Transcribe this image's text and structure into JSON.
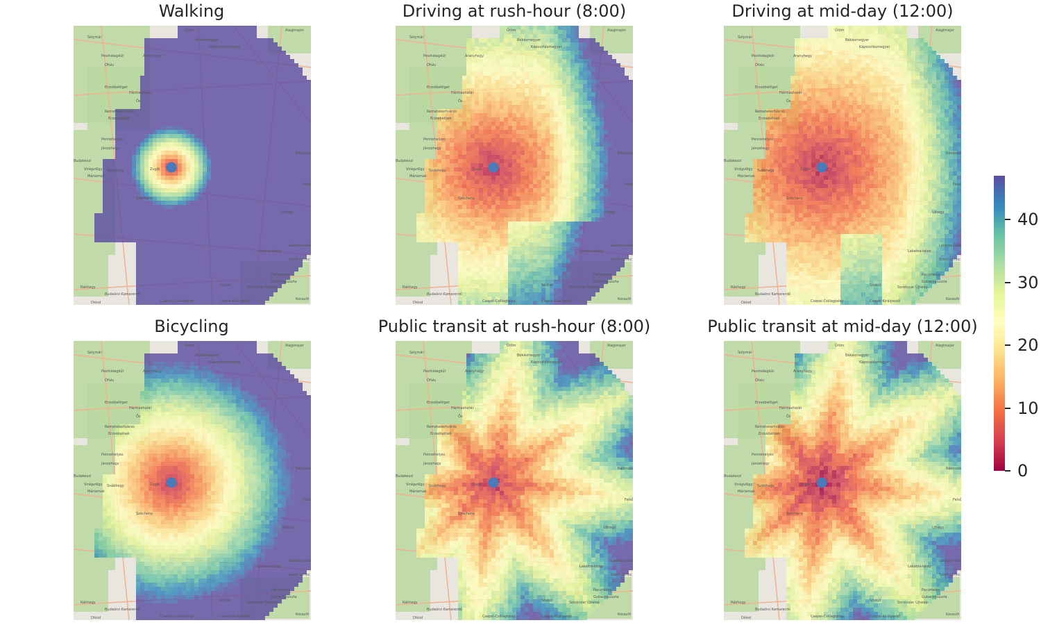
{
  "panels": [
    {
      "title": "Walking",
      "mode": "walking"
    },
    {
      "title": "Driving at rush-hour (8:00)",
      "mode": "drive_rush"
    },
    {
      "title": "Driving at mid-day (12:00)",
      "mode": "drive_mid"
    },
    {
      "title": "Bicycling",
      "mode": "bike"
    },
    {
      "title": "Public transit at rush-hour (8:00)",
      "mode": "transit_rush"
    },
    {
      "title": "Public transit at mid-day (12:00)",
      "mode": "transit_mid"
    }
  ],
  "colorbar": {
    "min": 0,
    "max": 47,
    "ticks": [
      "0",
      "10",
      "20",
      "30",
      "40"
    ],
    "colormap": [
      "#9e0142",
      "#d53e4f",
      "#f46d43",
      "#fdae61",
      "#fee08b",
      "#ffffbf",
      "#e6f598",
      "#abdda4",
      "#66c2a5",
      "#3288bd",
      "#5e4fa2"
    ]
  },
  "map_labels": [
    "Solymár",
    "Üröm",
    "Békásmegyer",
    "Alagimajor",
    "Aranyhegy",
    "Káposztásmegyer",
    "Pesthidegkút",
    "Ófalu",
    "Erzsébetliget",
    "Hármashatár",
    "Remetekertváros",
    "Ős",
    "Erzsébetnek",
    "Pennehelyes",
    "Jánoshegy",
    "Virágvölgy",
    "Budakeszi",
    "Máriamak",
    "Svábhegy",
    "Zugló",
    "Szécheny",
    "Ujhegy",
    "Budaörsi Kamarerdő",
    "Rákhegy",
    "Sóskút",
    "Csepel-Csillagtelep",
    "Diósd",
    "Érd és Fenyőgyalúdői",
    "Csepel-Királyerdő",
    "Sorokszar Újtelep",
    "Szent Lőrinc",
    "Lakatos-lakótelep",
    "Lakatos-telep",
    "Pacurtelep",
    "Kossuth",
    "Felsőt",
    "Rákosszentmihály",
    "Gubacsipuszta"
  ],
  "colors": {
    "origin_marker": "#4a7ab8",
    "nodata": "#e7827a"
  }
}
